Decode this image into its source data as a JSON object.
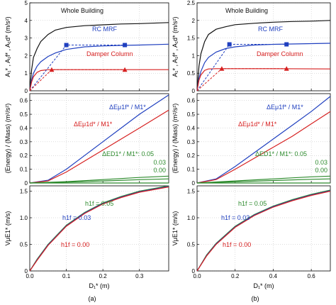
{
  "figure": {
    "label_a": "(a)",
    "label_b": "(b)",
    "colors": {
      "black": "#111111",
      "blue": "#1f3fbf",
      "red": "#d62020",
      "green": "#2e8b2e"
    }
  },
  "chart_data": [
    {
      "id": "a-top",
      "type": "line",
      "ylabel": "A₁* , A₁f* , A₁d* (m/s²)",
      "xlim": [
        0,
        0.38
      ],
      "ylim": [
        0,
        5
      ],
      "xticks": [
        0.0,
        0.1,
        0.2,
        0.3
      ],
      "yticks": [
        0,
        1,
        2,
        3,
        4,
        5
      ],
      "xtick_labels": [
        "",
        "",
        "",
        ""
      ],
      "ytick_labels": [
        "0",
        "1",
        "2",
        "3",
        "4",
        "5"
      ],
      "annotations": [
        "Whole Building",
        "RC MRF",
        "Damper Column"
      ],
      "series": [
        {
          "color": "black",
          "dash": false,
          "x": [
            0,
            0.005,
            0.01,
            0.02,
            0.03,
            0.05,
            0.07,
            0.1,
            0.15,
            0.2,
            0.25,
            0.3,
            0.38
          ],
          "y": [
            0,
            1.2,
            1.9,
            2.4,
            2.8,
            3.2,
            3.45,
            3.6,
            3.7,
            3.75,
            3.8,
            3.82,
            3.88
          ]
        },
        {
          "color": "blue",
          "dash": false,
          "x": [
            0,
            0.005,
            0.01,
            0.02,
            0.03,
            0.05,
            0.07,
            0.1,
            0.15,
            0.2,
            0.25,
            0.3,
            0.38
          ],
          "y": [
            0,
            0.6,
            1.0,
            1.4,
            1.65,
            1.95,
            2.15,
            2.35,
            2.5,
            2.55,
            2.58,
            2.6,
            2.65
          ]
        },
        {
          "color": "red",
          "dash": false,
          "x": [
            0,
            0.005,
            0.01,
            0.02,
            0.03,
            0.05,
            0.07,
            0.1,
            0.2,
            0.3,
            0.38
          ],
          "y": [
            0,
            0.5,
            0.8,
            1.05,
            1.15,
            1.2,
            1.2,
            1.2,
            1.2,
            1.2,
            1.2
          ]
        },
        {
          "color": "blue",
          "dash": true,
          "marker": "square",
          "x": [
            0,
            0.1,
            0.26
          ],
          "y": [
            0,
            2.6,
            2.6
          ]
        },
        {
          "color": "red",
          "dash": true,
          "marker": "triangle",
          "x": [
            0,
            0.06,
            0.26
          ],
          "y": [
            0,
            1.2,
            1.2
          ]
        }
      ]
    },
    {
      "id": "b-top",
      "type": "line",
      "ylabel": "A₁* , A₁f* , A₁d* (m/s²)",
      "xlim": [
        0,
        0.7
      ],
      "ylim": [
        0,
        2.5
      ],
      "xticks": [
        0.0,
        0.2,
        0.4,
        0.6
      ],
      "yticks": [
        0,
        0.5,
        1,
        1.5,
        2,
        2.5
      ],
      "xtick_labels": [
        "",
        "",
        "",
        ""
      ],
      "ytick_labels": [
        "0",
        "0.5",
        "1",
        "1.5",
        "2",
        "2.5"
      ],
      "annotations": [
        "Whole Building",
        "RC MRF",
        "Damper Column"
      ],
      "series": [
        {
          "color": "black",
          "dash": false,
          "x": [
            0,
            0.01,
            0.02,
            0.04,
            0.06,
            0.1,
            0.15,
            0.2,
            0.3,
            0.4,
            0.5,
            0.6,
            0.7
          ],
          "y": [
            0,
            0.7,
            1.05,
            1.4,
            1.6,
            1.75,
            1.82,
            1.88,
            1.92,
            1.95,
            1.97,
            1.98,
            2.0
          ]
        },
        {
          "color": "blue",
          "dash": false,
          "x": [
            0,
            0.01,
            0.02,
            0.04,
            0.06,
            0.1,
            0.15,
            0.2,
            0.3,
            0.4,
            0.5,
            0.6,
            0.7
          ],
          "y": [
            0,
            0.35,
            0.55,
            0.8,
            0.95,
            1.1,
            1.2,
            1.25,
            1.3,
            1.32,
            1.33,
            1.34,
            1.35
          ]
        },
        {
          "color": "red",
          "dash": false,
          "x": [
            0,
            0.01,
            0.02,
            0.04,
            0.06,
            0.1,
            0.2,
            0.4,
            0.7
          ],
          "y": [
            0,
            0.3,
            0.45,
            0.58,
            0.62,
            0.63,
            0.63,
            0.63,
            0.62
          ]
        },
        {
          "color": "blue",
          "dash": true,
          "marker": "square",
          "x": [
            0,
            0.17,
            0.47
          ],
          "y": [
            0,
            1.32,
            1.32
          ]
        },
        {
          "color": "red",
          "dash": true,
          "marker": "triangle",
          "x": [
            0,
            0.13,
            0.47
          ],
          "y": [
            0,
            0.63,
            0.63
          ]
        }
      ]
    },
    {
      "id": "a-mid",
      "type": "line",
      "ylabel": "(Energy) / (Mass) (m²/s²)",
      "xlim": [
        0,
        0.38
      ],
      "ylim": [
        0,
        0.65
      ],
      "xticks": [
        0.0,
        0.1,
        0.2,
        0.3
      ],
      "yticks": [
        0,
        0.1,
        0.2,
        0.3,
        0.4,
        0.5,
        0.6
      ],
      "xtick_labels": [
        "",
        "",
        "",
        ""
      ],
      "ytick_labels": [
        "0",
        "0.1",
        "0.2",
        "0.3",
        "0.4",
        "0.5",
        "0.6"
      ],
      "annotations": [
        "ΔEμ1f* / M1*",
        "ΔEμ1d* / M1*",
        "ΔED1* / M1*: 0.05",
        "0.03",
        "0.00"
      ],
      "series": [
        {
          "color": "blue",
          "x": [
            0,
            0.05,
            0.1,
            0.15,
            0.2,
            0.25,
            0.3,
            0.38
          ],
          "y": [
            0,
            0.02,
            0.1,
            0.2,
            0.3,
            0.4,
            0.5,
            0.64
          ]
        },
        {
          "color": "red",
          "x": [
            0,
            0.05,
            0.1,
            0.15,
            0.2,
            0.25,
            0.3,
            0.38
          ],
          "y": [
            0,
            0.015,
            0.08,
            0.16,
            0.24,
            0.32,
            0.4,
            0.53
          ]
        },
        {
          "color": "green",
          "x": [
            0,
            0.1,
            0.2,
            0.3,
            0.38
          ],
          "y": [
            0,
            0.01,
            0.025,
            0.04,
            0.05
          ]
        },
        {
          "color": "green",
          "x": [
            0,
            0.1,
            0.2,
            0.3,
            0.38
          ],
          "y": [
            0,
            0.006,
            0.015,
            0.024,
            0.03
          ]
        },
        {
          "color": "green",
          "x": [
            0,
            0.38
          ],
          "y": [
            0,
            0.0
          ]
        }
      ]
    },
    {
      "id": "b-mid",
      "type": "line",
      "ylabel": "(Energy) / (Mass) (m²/s²)",
      "xlim": [
        0,
        0.7
      ],
      "ylim": [
        0,
        0.65
      ],
      "xticks": [
        0.0,
        0.2,
        0.4,
        0.6
      ],
      "yticks": [
        0,
        0.1,
        0.2,
        0.3,
        0.4,
        0.5,
        0.6
      ],
      "xtick_labels": [
        "",
        "",
        "",
        ""
      ],
      "ytick_labels": [
        "0",
        "0.1",
        "0.2",
        "0.3",
        "0.4",
        "0.5",
        "0.6"
      ],
      "annotations": [
        "ΔEμ1f* / M1*",
        "ΔEμ1d* / M1*",
        "ΔED1* / M1*: 0.05",
        "0.03",
        "0.00"
      ],
      "series": [
        {
          "color": "blue",
          "x": [
            0,
            0.1,
            0.2,
            0.3,
            0.4,
            0.5,
            0.6,
            0.7
          ],
          "y": [
            0,
            0.03,
            0.12,
            0.22,
            0.32,
            0.42,
            0.52,
            0.63
          ]
        },
        {
          "color": "red",
          "x": [
            0,
            0.1,
            0.2,
            0.3,
            0.4,
            0.5,
            0.6,
            0.7
          ],
          "y": [
            0,
            0.025,
            0.1,
            0.18,
            0.26,
            0.34,
            0.43,
            0.52
          ]
        },
        {
          "color": "green",
          "x": [
            0,
            0.2,
            0.4,
            0.6,
            0.7
          ],
          "y": [
            0,
            0.015,
            0.03,
            0.045,
            0.05
          ]
        },
        {
          "color": "green",
          "x": [
            0,
            0.2,
            0.4,
            0.6,
            0.7
          ],
          "y": [
            0,
            0.009,
            0.018,
            0.027,
            0.03
          ]
        },
        {
          "color": "green",
          "x": [
            0,
            0.7
          ],
          "y": [
            0,
            0.0
          ]
        }
      ]
    },
    {
      "id": "a-bot",
      "type": "line",
      "xlabel": "D₁* (m)",
      "ylabel": "VμE1* (m/s)",
      "xlim": [
        0,
        0.38
      ],
      "ylim": [
        0,
        1.6
      ],
      "xticks": [
        0.0,
        0.1,
        0.2,
        0.3
      ],
      "yticks": [
        0,
        0.5,
        1.0,
        1.5
      ],
      "xtick_labels": [
        "0.0",
        "0.1",
        "0.2",
        "0.3"
      ],
      "ytick_labels": [
        "0",
        "0.5",
        "1.0",
        "1.5"
      ],
      "annotations": [
        "h1f = 0.05",
        "h1f = 0.03",
        "h1f = 0.00"
      ],
      "series": [
        {
          "color": "green",
          "x": [
            0,
            0.02,
            0.05,
            0.1,
            0.15,
            0.2,
            0.25,
            0.3,
            0.38
          ],
          "y": [
            0,
            0.22,
            0.5,
            0.86,
            1.1,
            1.28,
            1.4,
            1.5,
            1.6
          ]
        },
        {
          "color": "blue",
          "x": [
            0,
            0.02,
            0.05,
            0.1,
            0.15,
            0.2,
            0.25,
            0.3,
            0.38
          ],
          "y": [
            0,
            0.21,
            0.49,
            0.85,
            1.09,
            1.27,
            1.39,
            1.49,
            1.59
          ]
        },
        {
          "color": "red",
          "x": [
            0,
            0.02,
            0.05,
            0.1,
            0.15,
            0.2,
            0.25,
            0.3,
            0.38
          ],
          "y": [
            0,
            0.2,
            0.48,
            0.84,
            1.08,
            1.26,
            1.38,
            1.48,
            1.58
          ]
        }
      ]
    },
    {
      "id": "b-bot",
      "type": "line",
      "xlabel": "D₁* (m)",
      "ylabel": "VμE1* (m/s)",
      "xlim": [
        0,
        0.7
      ],
      "ylim": [
        0,
        1.6
      ],
      "xticks": [
        0.0,
        0.2,
        0.4,
        0.6
      ],
      "yticks": [
        0,
        0.5,
        1.0,
        1.5
      ],
      "xtick_labels": [
        "0.0",
        "0.2",
        "0.4",
        "0.6"
      ],
      "ytick_labels": [
        "0",
        "0.5",
        "1.0",
        "1.5"
      ],
      "annotations": [
        "h1f = 0.05",
        "h1f = 0.03",
        "h1f = 0.00"
      ],
      "series": [
        {
          "color": "green",
          "x": [
            0,
            0.05,
            0.1,
            0.2,
            0.3,
            0.4,
            0.5,
            0.6,
            0.7
          ],
          "y": [
            0,
            0.3,
            0.52,
            0.84,
            1.06,
            1.22,
            1.34,
            1.44,
            1.52
          ]
        },
        {
          "color": "blue",
          "x": [
            0,
            0.05,
            0.1,
            0.2,
            0.3,
            0.4,
            0.5,
            0.6,
            0.7
          ],
          "y": [
            0,
            0.29,
            0.51,
            0.83,
            1.05,
            1.21,
            1.33,
            1.43,
            1.51
          ]
        },
        {
          "color": "red",
          "x": [
            0,
            0.05,
            0.1,
            0.2,
            0.3,
            0.4,
            0.5,
            0.6,
            0.7
          ],
          "y": [
            0,
            0.28,
            0.5,
            0.82,
            1.04,
            1.2,
            1.32,
            1.42,
            1.5
          ]
        }
      ]
    }
  ]
}
